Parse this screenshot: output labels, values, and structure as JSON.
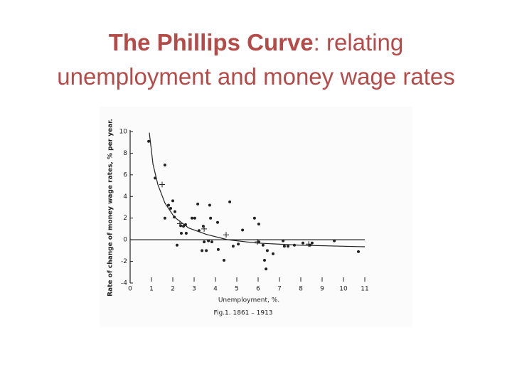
{
  "slide": {
    "title_bold": "The Phillips Curve",
    "title_mid": ": relating",
    "title_end": "unemployment and money wage rates"
  },
  "chart_data": {
    "type": "scatter",
    "x_label": "Unemployment, %.",
    "y_label": "Rate of change of money wage rates, % per year.",
    "caption": "Fig.1. 1861 – 1913",
    "xlim": [
      0,
      11
    ],
    "xticks": [
      0,
      1,
      2,
      3,
      4,
      5,
      6,
      7,
      8,
      9,
      10,
      11
    ],
    "ylim": [
      -4,
      10
    ],
    "yticks": [
      -4,
      -2,
      0,
      2,
      4,
      6,
      8,
      10
    ],
    "zero_line": true,
    "series": [
      {
        "marker": "dot",
        "color": "#222222",
        "x": [
          0.87,
          1.17,
          1.63,
          1.63,
          1.8,
          1.9,
          2.0,
          2.07,
          2.2,
          2.1,
          2.37,
          2.4,
          2.5,
          2.6,
          2.63,
          2.9,
          3.03,
          3.17,
          3.23,
          3.37,
          3.43,
          3.47,
          3.57,
          3.67,
          3.73,
          3.77,
          3.83,
          4.1,
          4.13,
          4.4,
          4.67,
          4.83,
          5.07,
          5.27,
          5.83,
          6.03,
          6.03,
          6.23,
          6.3,
          6.43,
          6.37,
          6.7,
          7.17,
          7.23,
          7.4,
          7.7,
          8.1,
          8.43,
          8.53,
          9.57,
          10.7
        ],
        "values": [
          9.1,
          5.7,
          6.9,
          2.0,
          3.2,
          2.9,
          3.6,
          2.1,
          -0.5,
          2.6,
          1.3,
          0.6,
          1.25,
          1.4,
          0.6,
          2.0,
          2.0,
          3.3,
          0.85,
          -1.0,
          1.25,
          -0.2,
          -1.0,
          -0.1,
          3.2,
          2.0,
          -0.2,
          1.6,
          -0.9,
          -1.9,
          3.5,
          -0.6,
          -0.4,
          0.9,
          2.0,
          1.45,
          -0.2,
          -0.5,
          -1.9,
          -1.0,
          -2.7,
          -1.3,
          -0.1,
          -0.6,
          -0.6,
          -0.5,
          -0.3,
          -0.5,
          -0.3,
          -0.1,
          -1.1
        ]
      },
      {
        "marker": "cross",
        "color": "#222222",
        "x": [
          1.5,
          2.33,
          3.47,
          4.5,
          5.97,
          8.37
        ],
        "values": [
          5.1,
          1.5,
          1.0,
          0.45,
          -0.2,
          -0.4
        ]
      },
      {
        "marker": "line",
        "color": "#222222",
        "x": [
          0.9,
          1.07,
          1.3,
          1.63,
          2.07,
          2.73,
          3.57,
          4.57,
          5.9,
          7.9,
          11
        ],
        "values": [
          9.9,
          7.0,
          5.1,
          3.4,
          2.1,
          1.1,
          0.5,
          0,
          -0.3,
          -0.5,
          -0.65
        ]
      }
    ]
  }
}
